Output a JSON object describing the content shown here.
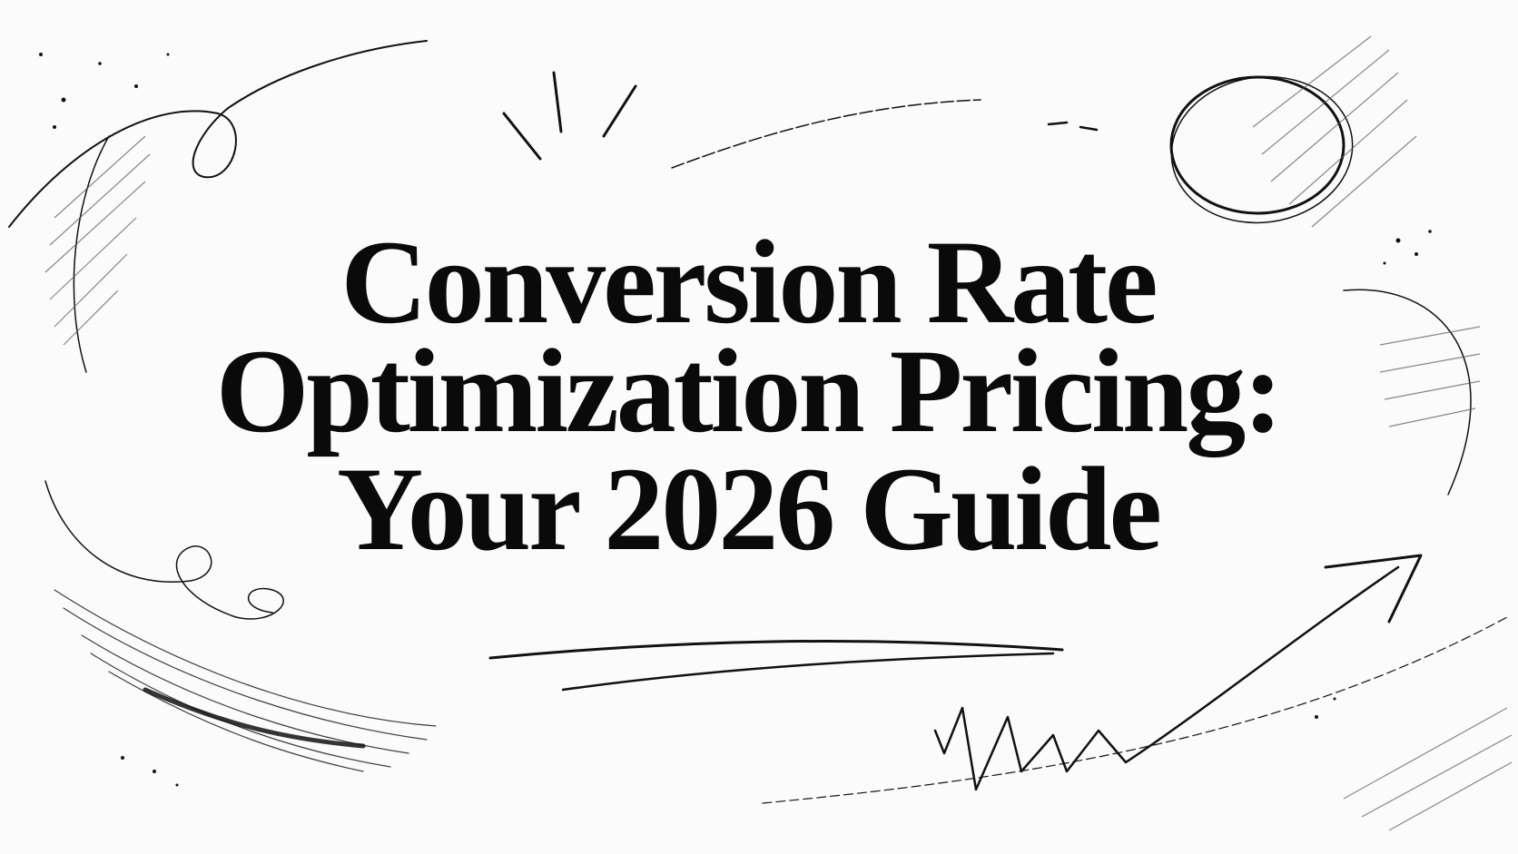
{
  "title": {
    "lines": [
      "Conversion Rate",
      "Optimization Pricing:",
      "Your 2026 Guide"
    ]
  }
}
